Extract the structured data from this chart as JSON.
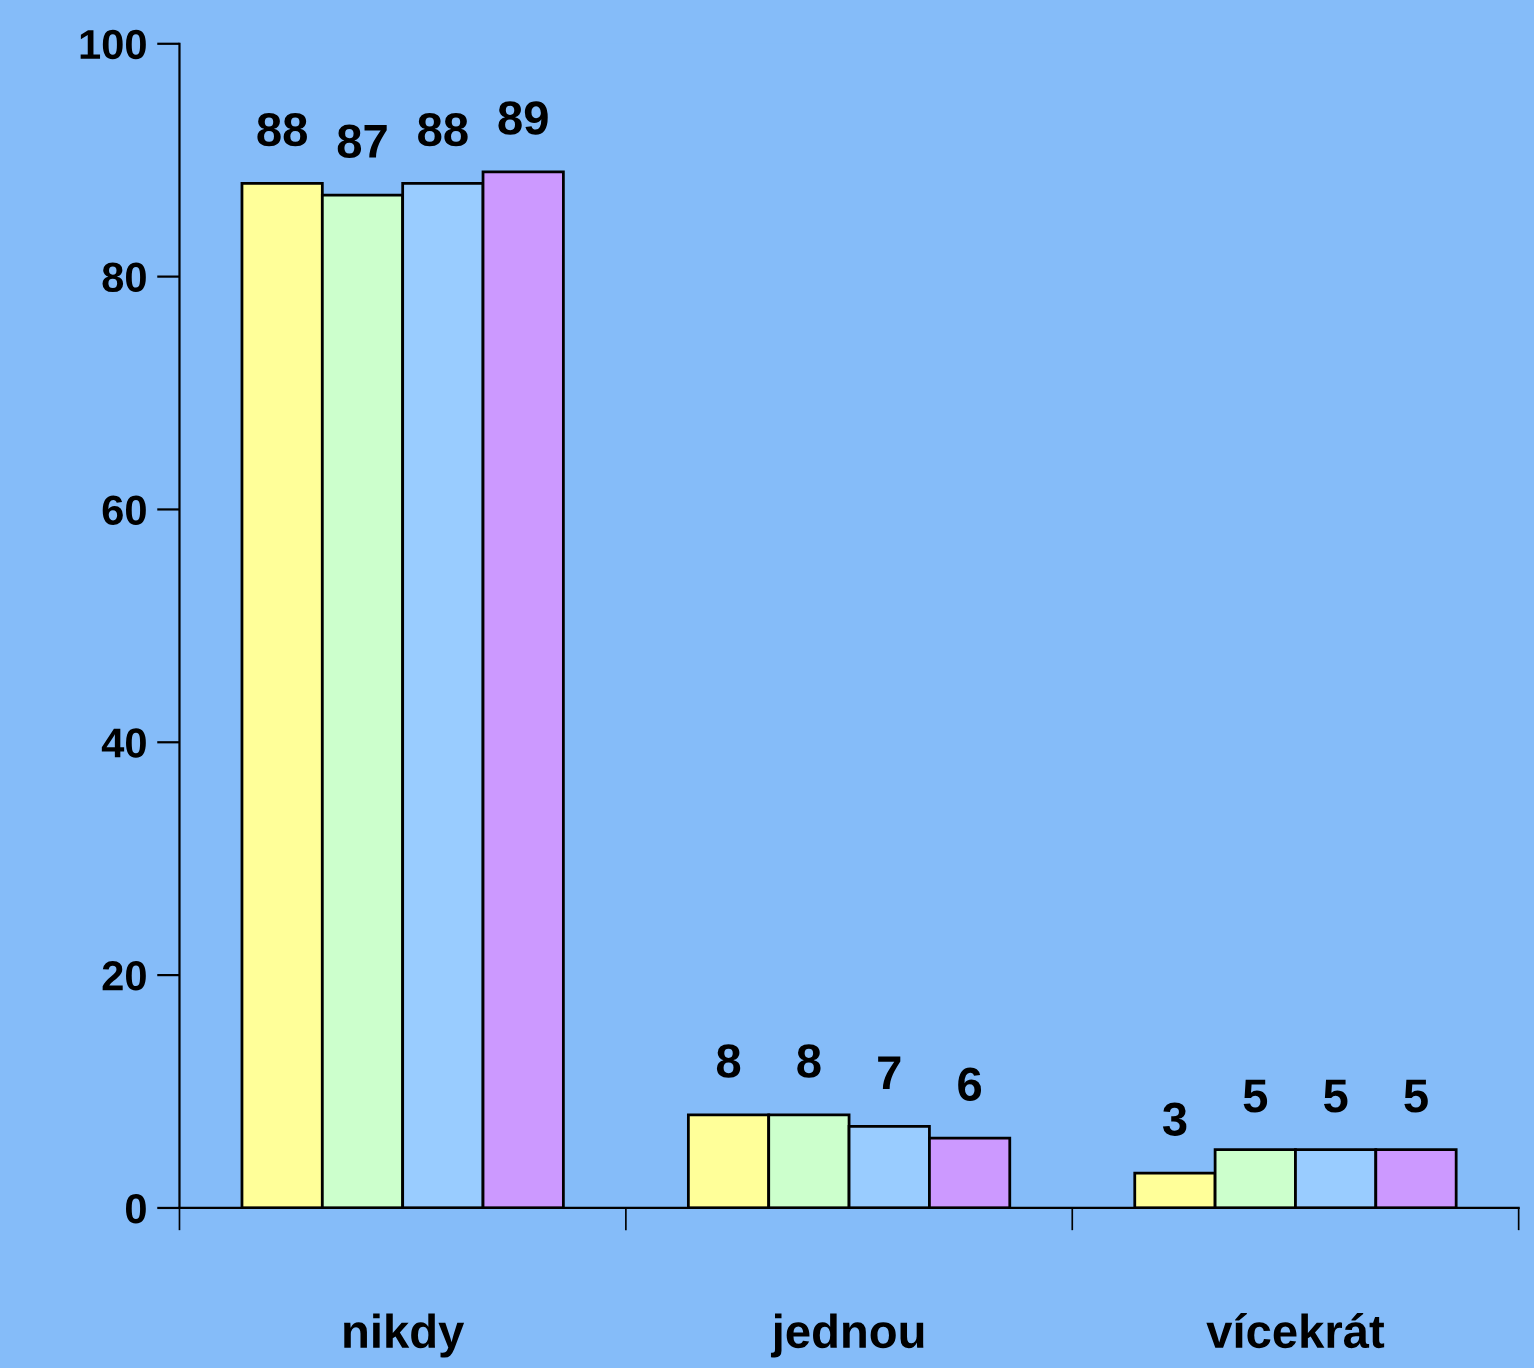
{
  "chart_data": {
    "type": "bar",
    "categories": [
      "nikdy",
      "jednou",
      "vícekrát"
    ],
    "series": [
      {
        "color": "#ffff99",
        "values": [
          88,
          8,
          3
        ]
      },
      {
        "color": "#ccffcc",
        "values": [
          87,
          8,
          5
        ]
      },
      {
        "color": "#99ccff",
        "values": [
          88,
          7,
          5
        ]
      },
      {
        "color": "#cc99ff",
        "values": [
          89,
          6,
          5
        ]
      }
    ],
    "ylim": [
      0,
      100
    ],
    "yticks": [
      0,
      20,
      40,
      60,
      80,
      100
    ],
    "data_labels": true,
    "grid": false,
    "legend": false
  }
}
